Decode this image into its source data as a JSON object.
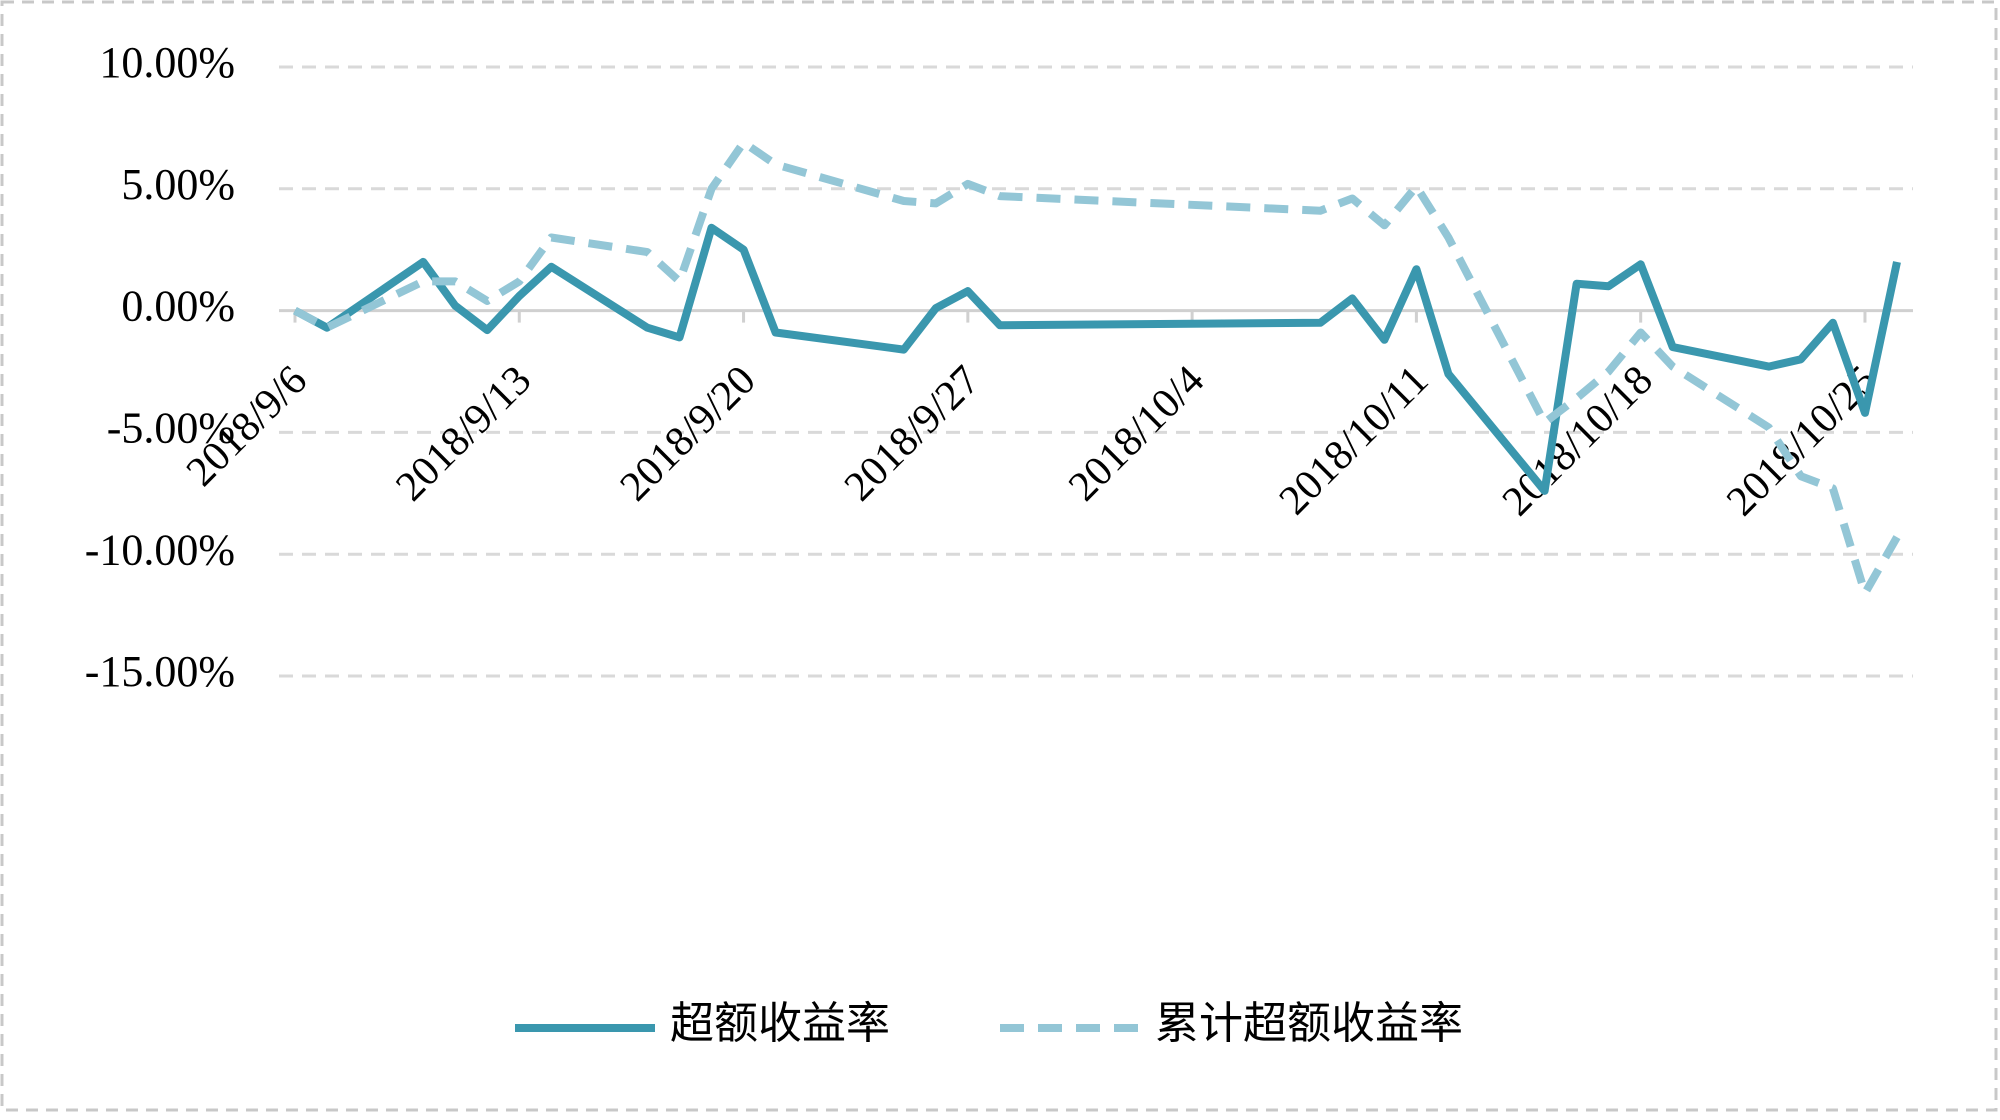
{
  "chart_data": {
    "type": "line",
    "x": [
      "2018/9/6",
      "2018/9/7",
      "2018/9/10",
      "2018/9/11",
      "2018/9/12",
      "2018/9/13",
      "2018/9/14",
      "2018/9/17",
      "2018/9/18",
      "2018/9/19",
      "2018/9/20",
      "2018/9/21",
      "2018/9/25",
      "2018/9/26",
      "2018/9/27",
      "2018/9/28",
      "2018/10/8",
      "2018/10/9",
      "2018/10/10",
      "2018/10/11",
      "2018/10/12",
      "2018/10/15",
      "2018/10/16",
      "2018/10/17",
      "2018/10/18",
      "2018/10/19",
      "2018/10/22",
      "2018/10/23",
      "2018/10/24",
      "2018/10/25",
      "2018/10/26"
    ],
    "series": [
      {
        "name": "超额收益率",
        "color": "#3a97ae",
        "dash": false,
        "values": [
          0,
          -0.7,
          2.0,
          0.2,
          -0.8,
          0.6,
          1.8,
          -0.7,
          -1.1,
          3.4,
          2.5,
          -0.9,
          -1.6,
          0.1,
          0.8,
          -0.6,
          -0.5,
          0.5,
          -1.2,
          1.7,
          -2.6,
          -7.4,
          1.1,
          1.0,
          1.9,
          -1.5,
          -2.3,
          -2.0,
          -0.5,
          -4.2,
          2.0
        ]
      },
      {
        "name": "累计超额收益率",
        "color": "#93c6d6",
        "dash": true,
        "values": [
          0,
          -0.7,
          1.2,
          1.2,
          0.4,
          1.2,
          3.0,
          2.4,
          1.2,
          5.0,
          6.9,
          6.0,
          4.5,
          4.4,
          5.2,
          4.7,
          4.1,
          4.6,
          3.5,
          5.1,
          3.0,
          -4.6,
          -3.6,
          -2.5,
          -0.9,
          -2.3,
          -4.8,
          -6.8,
          -7.3,
          -11.6,
          -9.3
        ]
      }
    ],
    "xlim": [
      "2018/9/6",
      "2018/10/26"
    ],
    "xticks": [
      "2018/9/6",
      "2018/9/13",
      "2018/9/20",
      "2018/9/27",
      "2018/10/4",
      "2018/10/11",
      "2018/10/18",
      "2018/10/25"
    ],
    "ylim": [
      -15,
      10
    ],
    "yticks": [
      {
        "value": 10,
        "label": "10.00%"
      },
      {
        "value": 5,
        "label": "5.00%"
      },
      {
        "value": 0,
        "label": "0.00%"
      },
      {
        "value": -5,
        "label": "-5.00%"
      },
      {
        "value": -10,
        "label": "-10.00%"
      },
      {
        "value": -15,
        "label": "-15.00%"
      }
    ],
    "grid": true,
    "legend": "bottom"
  }
}
